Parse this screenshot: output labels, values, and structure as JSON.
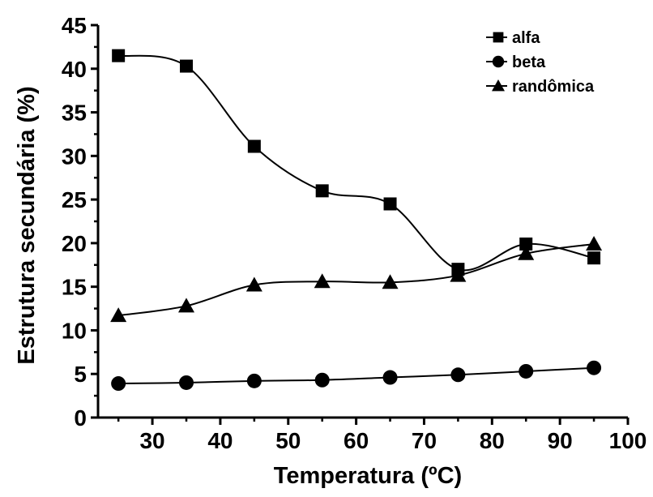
{
  "chart_data": {
    "type": "line",
    "xlabel": "Temperatura (ºC)",
    "ylabel": "Estrutura secundária (%)",
    "xlim": [
      22,
      100
    ],
    "ylim": [
      0,
      45
    ],
    "x_ticks": [
      30,
      40,
      50,
      60,
      70,
      80,
      90,
      100
    ],
    "y_ticks": [
      0,
      5,
      10,
      15,
      20,
      25,
      30,
      35,
      40,
      45
    ],
    "grid": false,
    "legend_position": "top-right",
    "x": [
      25,
      35,
      45,
      55,
      65,
      75,
      85,
      95
    ],
    "series": [
      {
        "name": "alfa",
        "marker": "square",
        "values": [
          41.5,
          40.3,
          31.1,
          26.0,
          24.5,
          17.0,
          19.9,
          18.3
        ]
      },
      {
        "name": "beta",
        "marker": "circle",
        "values": [
          3.9,
          4.0,
          4.2,
          4.3,
          4.6,
          4.9,
          5.3,
          5.7
        ]
      },
      {
        "name": "randômica",
        "marker": "triangle",
        "values": [
          11.7,
          12.8,
          15.2,
          15.6,
          15.5,
          16.3,
          18.8,
          19.9
        ]
      }
    ]
  }
}
